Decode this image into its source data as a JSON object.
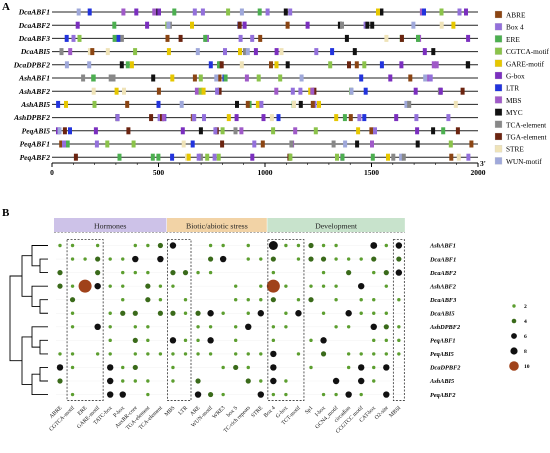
{
  "panel_a_label": "A",
  "panel_b_label": "B",
  "scale": {
    "ticks": [
      "0",
      "500",
      "1000",
      "1500",
      "2000"
    ],
    "end_mark": "3'"
  },
  "legend": [
    {
      "name": "ABRE",
      "color": "#8b4513"
    },
    {
      "name": "Box 4",
      "color": "#9370db"
    },
    {
      "name": "ERE",
      "color": "#4caf50"
    },
    {
      "name": "CGTCA-motif",
      "color": "#8bc34a"
    },
    {
      "name": "GARE-motif",
      "color": "#e6c700"
    },
    {
      "name": "G-box",
      "color": "#7b2fbf"
    },
    {
      "name": "LTR",
      "color": "#2233dd"
    },
    {
      "name": "MBS",
      "color": "#a05ac8"
    },
    {
      "name": "MYC",
      "color": "#111111"
    },
    {
      "name": "TCA-element",
      "color": "#888888"
    },
    {
      "name": "TGA-element",
      "color": "#6b2410"
    },
    {
      "name": "STRE",
      "color": "#efe3b8"
    },
    {
      "name": "WUN-motif",
      "color": "#9fa8da"
    }
  ],
  "genes": [
    "DcaABF1",
    "DcaABF2",
    "DcaABF3",
    "DcaABI5",
    "DcaDPBF2",
    "AshABF1",
    "AshABF2",
    "AshABI5",
    "AshDPBF2",
    "PeqABI5",
    "PeqABF1",
    "PeqABF2"
  ],
  "categories": [
    {
      "name": "Hormones",
      "color": "#cdc2e8"
    },
    {
      "name": "Biotic/abiotic stress",
      "color": "#f2d3a6"
    },
    {
      "name": "Development",
      "color": "#c8e3cc"
    }
  ],
  "columns": [
    "ABRE",
    "CGTCA-motif",
    "ERE",
    "GARE-motif",
    "TATC-box",
    "P-box",
    "AuxRR-core",
    "TGA-element",
    "TCA-element",
    "MBS",
    "LTR",
    "ARE",
    "WUN-motif",
    "WRE3",
    "box S",
    "TC-rich repeats",
    "STRE",
    "Box 4",
    "G-box",
    "TCT-motif",
    "Sp1",
    "I-box",
    "GCN4_motif",
    "circadian",
    "CCGTCC motif",
    "CAT-box",
    "O2-site",
    "MBSI"
  ],
  "rows": [
    "AshABF1",
    "DcaABF1",
    "DcaABF2",
    "AshABF2",
    "DcaABF3",
    "DcaABI5",
    "AshDPBF2",
    "PeqABF1",
    "PeqABI5",
    "DcaDPBF2",
    "AshABI5",
    "PeqABF2"
  ],
  "size_legend": [
    "2",
    "4",
    "6",
    "8",
    "10"
  ]
}
